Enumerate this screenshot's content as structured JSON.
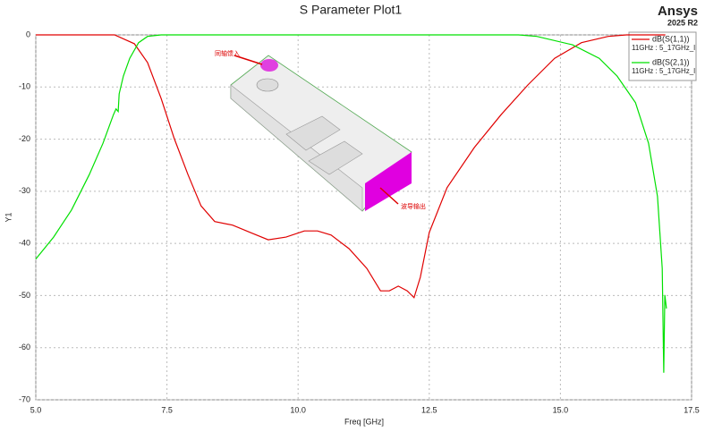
{
  "chart_data": {
    "type": "line",
    "title": "S Parameter Plot1",
    "brand": "Ansys",
    "version": "2025 R2",
    "x_label": "Freq [GHz]",
    "y_label": "Y1",
    "xlim": [
      5,
      17.5
    ],
    "xticks": [
      {
        "value": 5,
        "label": "5.0"
      },
      {
        "value": 7.5,
        "label": "7.5"
      },
      {
        "value": 10,
        "label": "10.0"
      },
      {
        "value": 12.5,
        "label": "12.5"
      },
      {
        "value": 15,
        "label": "15.0"
      },
      {
        "value": 17.5,
        "label": "17.5"
      }
    ],
    "ylim": [
      -70,
      0
    ],
    "yticks": [
      0,
      -10,
      -20,
      -30,
      -40,
      -50,
      -60,
      -70
    ],
    "grid": true,
    "annotations": [
      "同轴馈入",
      "波导输出"
    ],
    "series": [
      {
        "name": "dB(S(1,1))",
        "setup": "11GHz : 5_17GHz_l",
        "color": "#e00000",
        "x": [
          5,
          6.5,
          6.88,
          7.13,
          7.39,
          7.64,
          7.9,
          8.15,
          8.41,
          8.75,
          9.09,
          9.43,
          9.77,
          10.12,
          10.37,
          10.63,
          10.97,
          11.31,
          11.57,
          11.74,
          11.91,
          12.08,
          12.21,
          12.33,
          12.5,
          12.84,
          13.36,
          13.87,
          14.38,
          14.89,
          15.4,
          15.91,
          16.26,
          17
        ],
        "values": [
          0,
          0,
          -1.7,
          -5.3,
          -12.2,
          -19.9,
          -26.8,
          -32.8,
          -35.8,
          -36.5,
          -37.9,
          -39.3,
          -38.8,
          -37.6,
          -37.6,
          -38.4,
          -41,
          -44.8,
          -49.1,
          -49.1,
          -48.2,
          -49.1,
          -50.4,
          -46.5,
          -37.9,
          -29.3,
          -21.6,
          -15.3,
          -9.6,
          -4.5,
          -1.5,
          -0.3,
          0,
          0
        ]
      },
      {
        "name": "dB(S(2,1))",
        "setup": "11GHz : 5_17GHz_l",
        "color": "#00e000",
        "x": [
          5,
          5.34,
          5.68,
          6.02,
          6.28,
          6.48,
          6.53,
          6.57,
          6.59,
          6.67,
          6.79,
          6.96,
          7.13,
          7.39,
          14.2,
          14.55,
          15.23,
          15.74,
          16.08,
          16.43,
          16.68,
          16.85,
          16.94,
          16.97,
          16.99,
          17.02
        ],
        "values": [
          -43,
          -38.8,
          -33.6,
          -26.8,
          -20.8,
          -15.3,
          -14.2,
          -14.7,
          -11.3,
          -7.9,
          -4.5,
          -1.5,
          -0.3,
          0,
          0,
          -0.3,
          -1.9,
          -4.5,
          -7.9,
          -13,
          -20.8,
          -31,
          -44.8,
          -64.8,
          -49.9,
          -52.5
        ]
      }
    ]
  }
}
